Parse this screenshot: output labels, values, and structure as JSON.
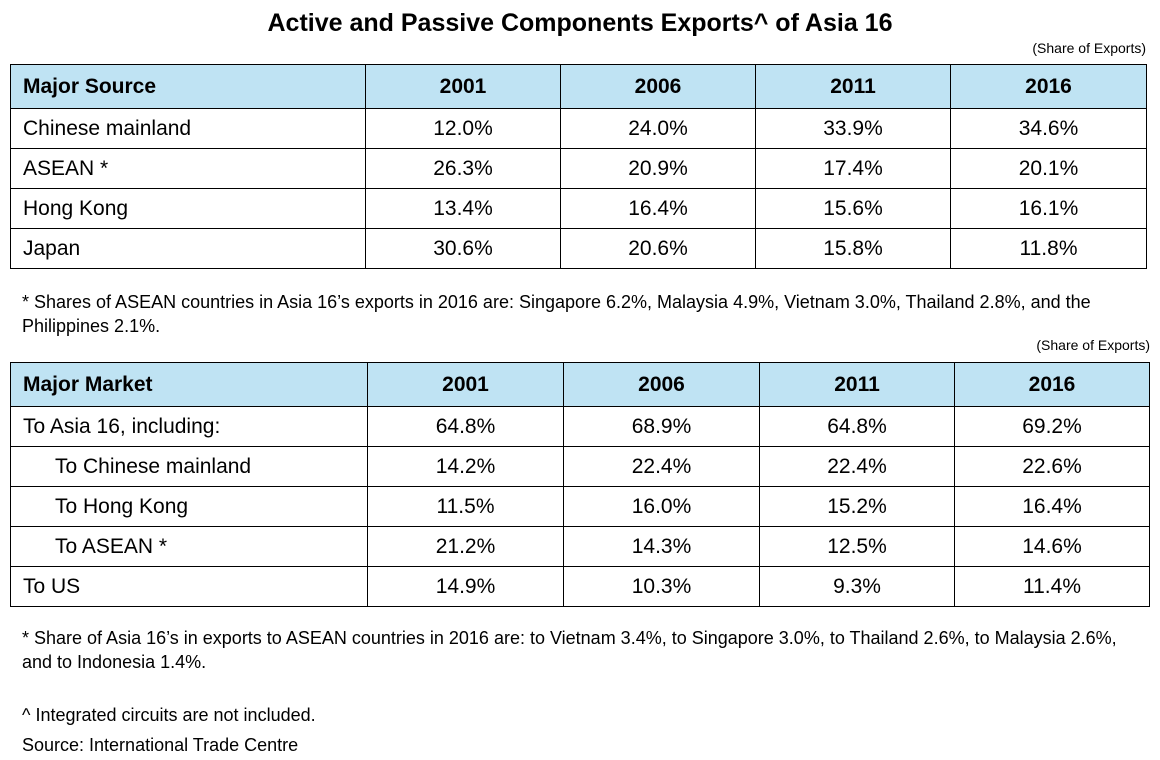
{
  "title": "Active and Passive Components Exports^ of Asia 16",
  "unit_note": "(Share of Exports)",
  "source_table": {
    "header": [
      "Major Source",
      "2001",
      "2006",
      "2011",
      "2016"
    ],
    "rows": [
      [
        "Chinese mainland",
        "12.0%",
        "24.0%",
        "33.9%",
        "34.6%"
      ],
      [
        "ASEAN *",
        "26.3%",
        "20.9%",
        "17.4%",
        "20.1%"
      ],
      [
        "Hong Kong",
        "13.4%",
        "16.4%",
        "15.6%",
        "16.1%"
      ],
      [
        "Japan",
        "30.6%",
        "20.6%",
        "15.8%",
        "11.8%"
      ]
    ]
  },
  "source_footnote": "* Shares of ASEAN countries in Asia 16’s exports in 2016 are: Singapore 6.2%, Malaysia 4.9%, Vietnam 3.0%, Thailand 2.8%, and the Philippines 2.1%.",
  "market_table": {
    "header": [
      "Major Market",
      "2001",
      "2006",
      "2011",
      "2016"
    ],
    "rows": [
      [
        "To Asia 16, including:",
        "64.8%",
        "68.9%",
        "64.8%",
        "69.2%"
      ],
      [
        "To Chinese mainland",
        "14.2%",
        "22.4%",
        "22.4%",
        "22.6%"
      ],
      [
        "To Hong Kong",
        "11.5%",
        "16.0%",
        "15.2%",
        "16.4%"
      ],
      [
        "To ASEAN *",
        "21.2%",
        "14.3%",
        "12.5%",
        "14.6%"
      ],
      [
        "To US",
        "14.9%",
        "10.3%",
        "9.3%",
        "11.4%"
      ]
    ]
  },
  "market_footnote": "* Share of Asia 16’s in exports to ASEAN countries in 2016 are: to Vietnam 3.4%, to Singapore 3.0%, to Thailand 2.6%, to Malaysia 2.6%, and to Indonesia 1.4%.",
  "ic_note": "^ Integrated circuits are not included.",
  "source_note": "Source: International Trade Centre",
  "colors": {
    "header_bg": "#bfe3f3",
    "border": "#000000"
  }
}
